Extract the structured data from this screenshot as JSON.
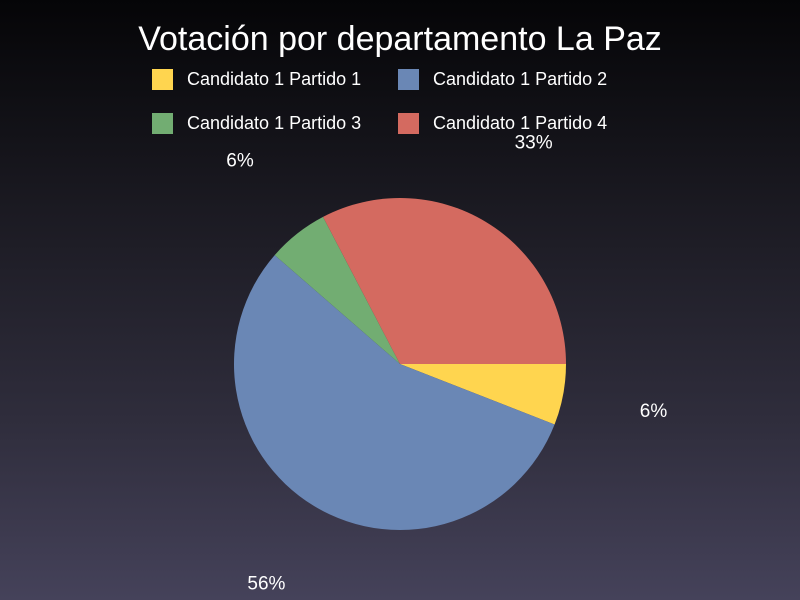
{
  "chart_data": {
    "type": "pie",
    "title": "Votación por departamento La Paz",
    "legend_position": "top",
    "slices": [
      {
        "name": "Candidato 1 Partido 1",
        "value": 6,
        "label": "6%",
        "color": "#ffd54f"
      },
      {
        "name": "Candidato 1 Partido 2",
        "value": 56,
        "label": "56%",
        "color": "#6a87b5"
      },
      {
        "name": "Candidato 1 Partido 3",
        "value": 6,
        "label": "6%",
        "color": "#72ad72"
      },
      {
        "name": "Candidato 1 Partido 4",
        "value": 33,
        "label": "33%",
        "color": "#d46a60"
      }
    ]
  }
}
